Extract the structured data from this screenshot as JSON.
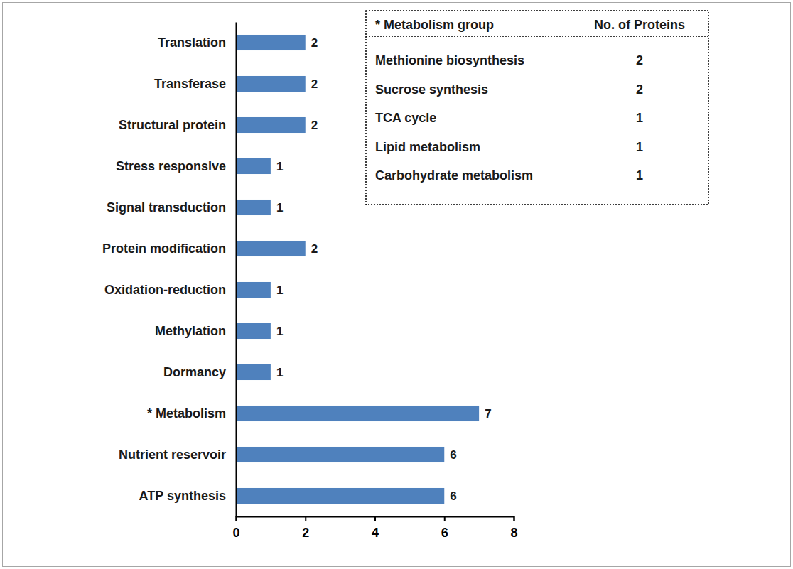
{
  "chart_data": {
    "type": "bar",
    "orientation": "horizontal",
    "categories": [
      "Translation",
      "Transferase",
      "Structural protein",
      "Stress responsive",
      "Signal transduction",
      "Protein modification",
      "Oxidation-reduction",
      "Methylation",
      "Dormancy",
      "* Metabolism",
      "Nutrient reservoir",
      "ATP synthesis"
    ],
    "values": [
      2,
      2,
      2,
      1,
      1,
      2,
      1,
      1,
      1,
      7,
      6,
      6
    ],
    "color": "#4f81bd",
    "xlim": [
      0,
      8
    ],
    "xticks": [
      0,
      2,
      4,
      6,
      8
    ],
    "grid": false,
    "data_labels": true
  },
  "table": {
    "header": [
      "* Metabolism group",
      "No. of Proteins"
    ],
    "rows": [
      [
        "Methionine biosynthesis",
        "2"
      ],
      [
        "Sucrose synthesis",
        "2"
      ],
      [
        "TCA cycle",
        "1"
      ],
      [
        "Lipid metabolism",
        "1"
      ],
      [
        "Carbohydrate metabolism",
        "1"
      ]
    ]
  }
}
